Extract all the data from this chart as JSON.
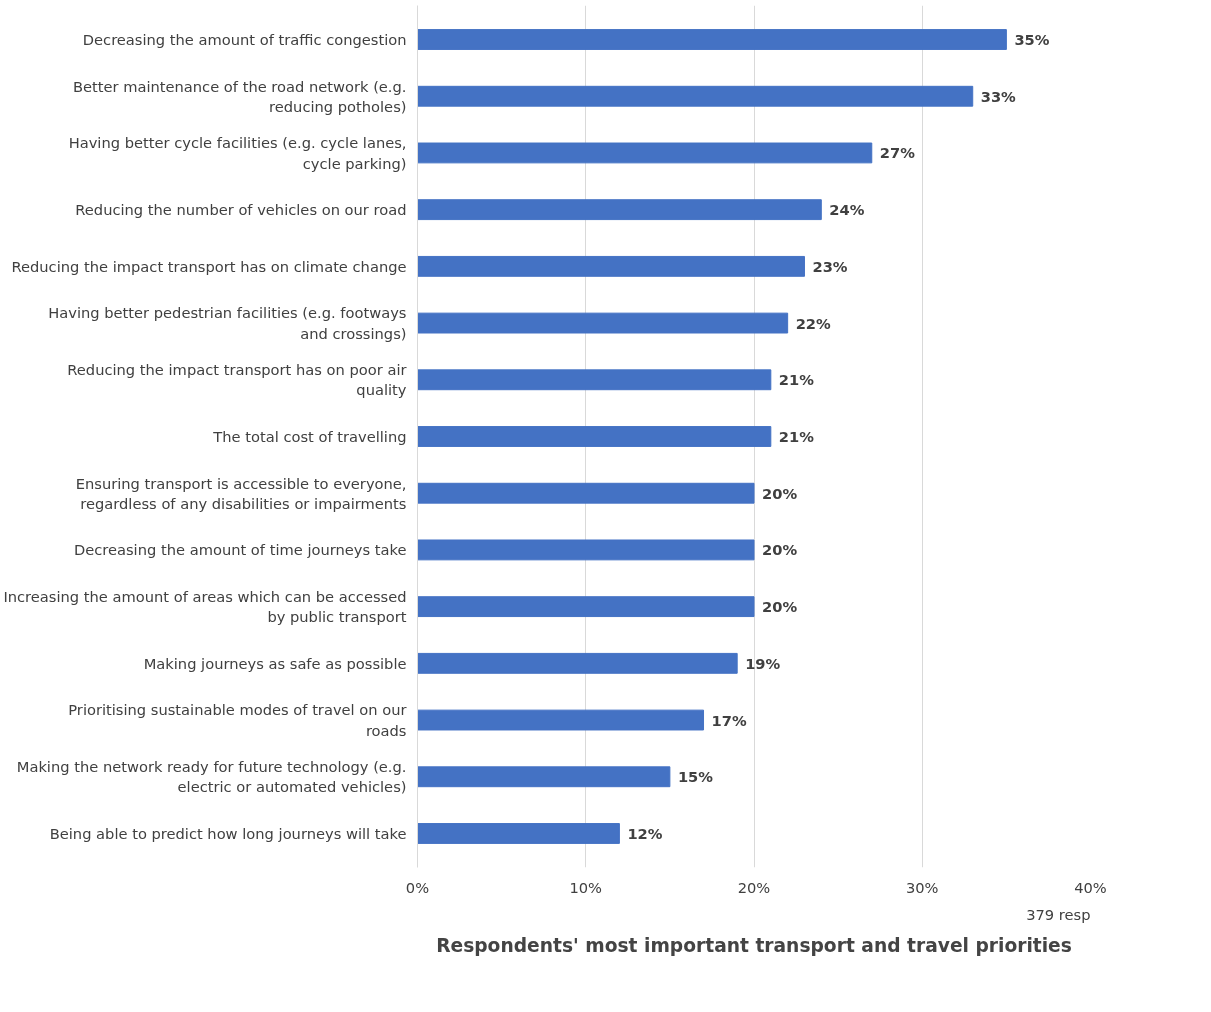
{
  "chart_data": {
    "type": "bar",
    "orientation": "horizontal",
    "title": "Respondents' most important transport and travel priorities",
    "categories": [
      "Decreasing the amount of traffic congestion",
      "Better maintenance of the road network (e.g. reducing potholes)",
      "Having better cycle facilities (e.g. cycle lanes, cycle parking)",
      "Reducing the number of vehicles on our road",
      "Reducing the impact transport has on climate change",
      "Having better pedestrian facilities (e.g. footways and crossings)",
      "Reducing the impact transport has on poor air quality",
      "The total cost of travelling",
      "Ensuring transport is accessible to everyone, regardless of any disabilities or impairments",
      "Decreasing the amount of time journeys take",
      "Increasing the amount of areas which can be accessed by public transport",
      "Making journeys as safe as possible",
      "Prioritising sustainable modes of travel on our roads",
      "Making the network ready for future technology (e.g. electric or automated vehicles)",
      "Being able to predict how long journeys will take"
    ],
    "values": [
      35,
      33,
      27,
      24,
      23,
      22,
      21,
      21,
      20,
      20,
      20,
      19,
      17,
      15,
      12
    ],
    "value_labels": [
      "35%",
      "33%",
      "27%",
      "24%",
      "23%",
      "22%",
      "21%",
      "21%",
      "20%",
      "20%",
      "20%",
      "19%",
      "17%",
      "15%",
      "12%"
    ],
    "color": "#4472c4",
    "xlim": [
      0,
      40
    ],
    "xticks": [
      {
        "value": 0,
        "label": "0%"
      },
      {
        "value": 10,
        "label": "10%"
      },
      {
        "value": 20,
        "label": "20%"
      },
      {
        "value": 30,
        "label": "30%"
      },
      {
        "value": 40,
        "label": "40%"
      }
    ],
    "grid": "x",
    "annotations": [
      "379 resp"
    ]
  }
}
